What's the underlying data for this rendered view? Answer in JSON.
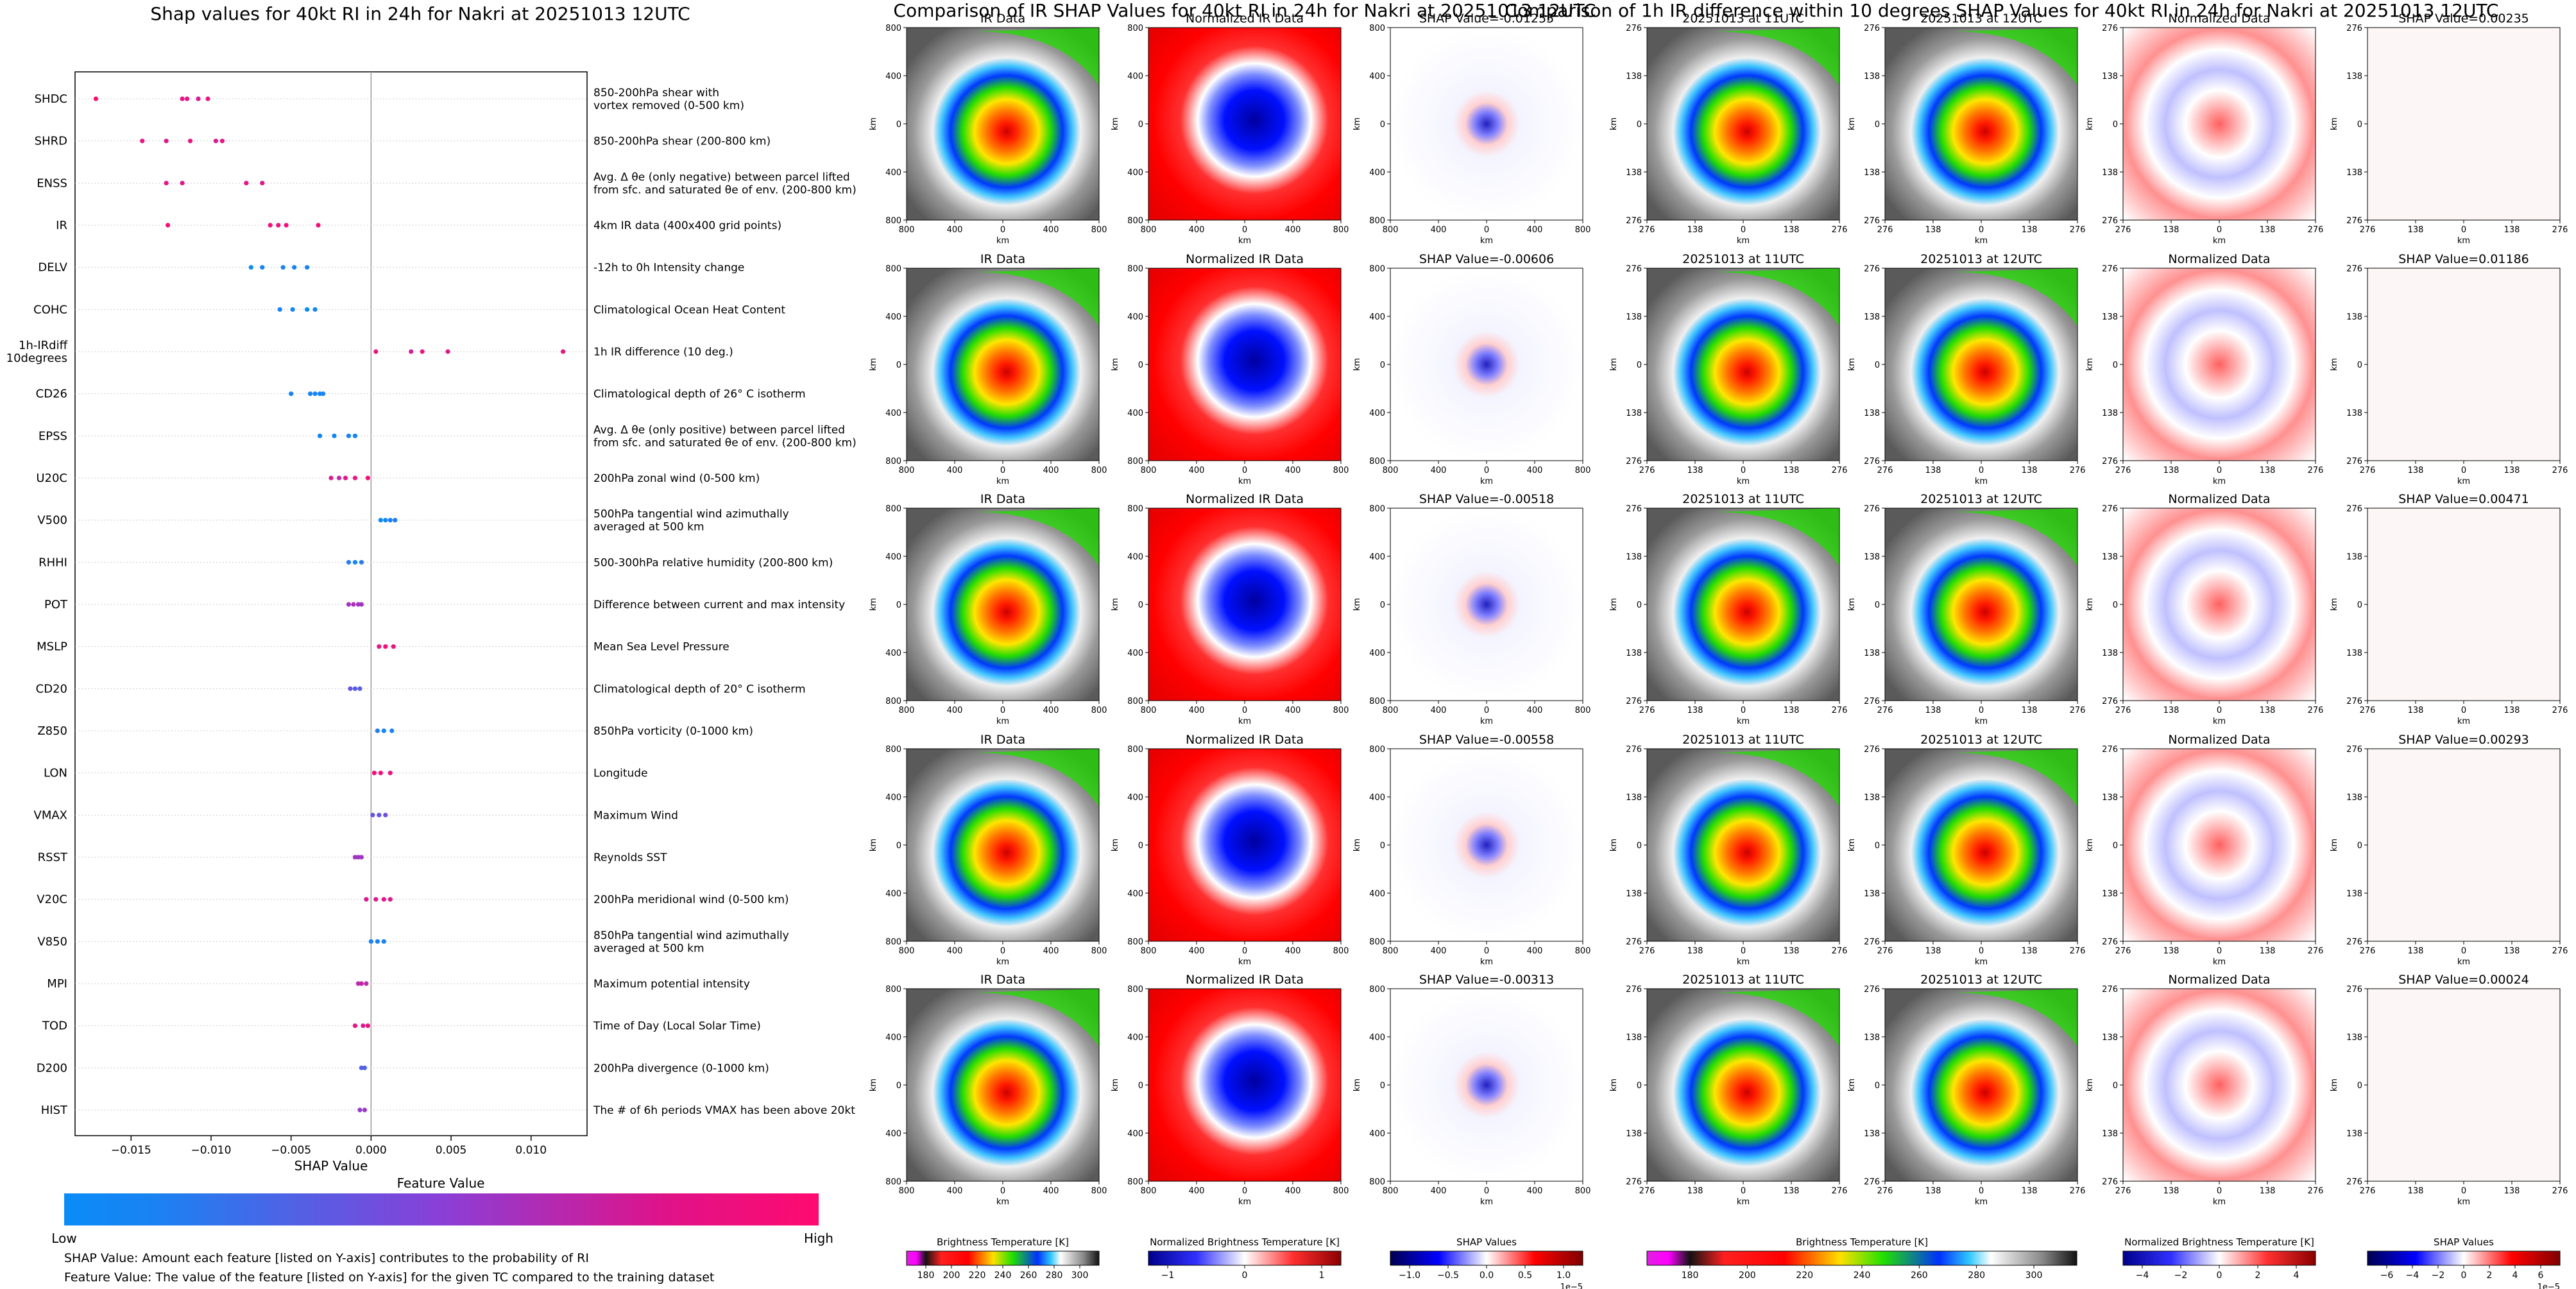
{
  "left_title": "Shap values for 40kt RI in 24h for Nakri at 20251013 12UTC",
  "mid_title": "Comparison of IR SHAP Values for 40kt RI in 24h for Nakri at 20251013 12UTC",
  "right_title": "Comparison of 1h IR difference within 10 degrees SHAP Values for 40kt RI in 24h for Nakri at 20251013 12UTC",
  "feature_colorbar": {
    "label": "Feature Value",
    "low": "Low",
    "high": "High",
    "colors": [
      "#0a8cf7",
      "#8a3fd7",
      "#ff0a6f"
    ]
  },
  "notes": [
    "SHAP Value: Amount each feature [listed on Y-axis] contributes to the probability of RI",
    "Feature Value: The value of the feature [listed on Y-axis] for the given TC compared to the training dataset"
  ],
  "chart_data": [
    {
      "type": "scatter",
      "title": "Shap values for 40kt RI in 24h for Nakri at 20251013 12UTC",
      "xlabel": "SHAP Value",
      "xlim": [
        -0.0185,
        0.0135
      ],
      "xticks": [
        -0.015,
        -0.01,
        -0.005,
        0.0,
        0.005,
        0.01
      ],
      "xticklabels": [
        "−0.015",
        "−0.010",
        "−0.005",
        "0.000",
        "0.005",
        "0.010"
      ],
      "grid": "horizontal dotted",
      "features": [
        {
          "name": "SHDC",
          "desc": "850-200hPa shear with\nvortex removed (0-500 km)",
          "points": [
            [
              -0.0172,
              1
            ],
            [
              -0.0118,
              0.9
            ],
            [
              -0.0115,
              0.9
            ],
            [
              -0.0108,
              0.85
            ],
            [
              -0.0102,
              0.9
            ]
          ]
        },
        {
          "name": "SHRD",
          "desc": "850-200hPa shear (200-800 km)",
          "points": [
            [
              -0.0143,
              0.9
            ],
            [
              -0.0128,
              0.85
            ],
            [
              -0.0113,
              0.9
            ],
            [
              -0.0097,
              0.85
            ],
            [
              -0.0093,
              0.9
            ]
          ]
        },
        {
          "name": "ENSS",
          "desc": "Avg. Δ θe (only negative) between parcel lifted\nfrom sfc. and saturated θe of env. (200-800 km)",
          "points": [
            [
              -0.0128,
              0.9
            ],
            [
              -0.0118,
              0.85
            ],
            [
              -0.0078,
              0.9
            ],
            [
              -0.0068,
              0.85
            ]
          ]
        },
        {
          "name": "IR",
          "desc": "4km IR data (400x400 grid points)",
          "points": [
            [
              -0.0127,
              0.95
            ],
            [
              -0.0063,
              0.95
            ],
            [
              -0.0058,
              0.9
            ],
            [
              -0.0053,
              0.95
            ],
            [
              -0.0033,
              0.95
            ]
          ]
        },
        {
          "name": "DELV",
          "desc": "-12h to 0h Intensity change",
          "points": [
            [
              -0.0075,
              0.0
            ],
            [
              -0.0068,
              0.05
            ],
            [
              -0.0055,
              0.05
            ],
            [
              -0.0048,
              0.05
            ],
            [
              -0.004,
              0.05
            ]
          ]
        },
        {
          "name": "COHC",
          "desc": "Climatological Ocean Heat Content",
          "points": [
            [
              -0.0057,
              0.05
            ],
            [
              -0.0049,
              0.05
            ],
            [
              -0.004,
              0.0
            ],
            [
              -0.0035,
              0.05
            ]
          ]
        },
        {
          "name": "1h-IRdiff\n10degrees",
          "desc": "1h IR difference (10 deg.)",
          "points": [
            [
              0.0003,
              0.9
            ],
            [
              0.0025,
              0.8
            ],
            [
              0.0032,
              0.9
            ],
            [
              0.0048,
              0.85
            ],
            [
              0.012,
              0.9
            ]
          ]
        },
        {
          "name": "CD26",
          "desc": "Climatological depth of 26° C isotherm",
          "points": [
            [
              -0.005,
              0.05
            ],
            [
              -0.0038,
              0.05
            ],
            [
              -0.0035,
              0.05
            ],
            [
              -0.0032,
              0.05
            ],
            [
              -0.003,
              0.05
            ]
          ]
        },
        {
          "name": "EPSS",
          "desc": "Avg. Δ θe (only positive) between parcel lifted\nfrom sfc. and saturated θe of env. (200-800 km)",
          "points": [
            [
              -0.0032,
              0.05
            ],
            [
              -0.0023,
              0.05
            ],
            [
              -0.0014,
              0.05
            ],
            [
              -0.001,
              0.05
            ]
          ]
        },
        {
          "name": "U20C",
          "desc": "200hPa zonal wind (0-500 km)",
          "points": [
            [
              -0.0025,
              0.85
            ],
            [
              -0.002,
              0.75
            ],
            [
              -0.0016,
              0.9
            ],
            [
              -0.001,
              0.9
            ],
            [
              -0.0002,
              0.95
            ]
          ]
        },
        {
          "name": "V500",
          "desc": "500hPa tangential wind azimuthally\naveraged at 500 km",
          "points": [
            [
              0.0006,
              0.0
            ],
            [
              0.0009,
              0.05
            ],
            [
              0.0012,
              0.05
            ],
            [
              0.0015,
              0.1
            ]
          ]
        },
        {
          "name": "RHHI",
          "desc": "500-300hPa relative humidity (200-800 km)",
          "points": [
            [
              -0.0014,
              0.1
            ],
            [
              -0.001,
              0.05
            ],
            [
              -0.0006,
              0.1
            ]
          ]
        },
        {
          "name": "POT",
          "desc": "Difference between current and max intensity",
          "points": [
            [
              -0.0014,
              0.6
            ],
            [
              -0.0011,
              0.65
            ],
            [
              -0.0008,
              0.6
            ],
            [
              -0.0006,
              0.6
            ]
          ]
        },
        {
          "name": "MSLP",
          "desc": "Mean Sea Level Pressure",
          "points": [
            [
              0.0005,
              0.9
            ],
            [
              0.0009,
              0.95
            ],
            [
              0.0014,
              0.9
            ]
          ]
        },
        {
          "name": "CD20",
          "desc": "Climatological depth of 20° C isotherm",
          "points": [
            [
              -0.0013,
              0.35
            ],
            [
              -0.001,
              0.3
            ],
            [
              -0.0007,
              0.3
            ]
          ]
        },
        {
          "name": "Z850",
          "desc": "850hPa vorticity (0-1000 km)",
          "points": [
            [
              0.0004,
              0.1
            ],
            [
              0.0008,
              0.05
            ],
            [
              0.0013,
              0.05
            ]
          ]
        },
        {
          "name": "LON",
          "desc": "Longitude",
          "points": [
            [
              0.0002,
              0.95
            ],
            [
              0.0006,
              0.95
            ],
            [
              0.0012,
              0.9
            ]
          ]
        },
        {
          "name": "VMAX",
          "desc": "Maximum Wind",
          "points": [
            [
              0.0001,
              0.35
            ],
            [
              0.0005,
              0.35
            ],
            [
              0.0009,
              0.4
            ]
          ]
        },
        {
          "name": "RSST",
          "desc": "Reynolds SST",
          "points": [
            [
              -0.001,
              0.6
            ],
            [
              -0.0008,
              0.6
            ],
            [
              -0.0006,
              0.6
            ]
          ]
        },
        {
          "name": "V20C",
          "desc": "200hPa meridional wind (0-500 km)",
          "points": [
            [
              -0.0003,
              0.85
            ],
            [
              0.0003,
              0.85
            ],
            [
              0.0008,
              0.9
            ],
            [
              0.0012,
              0.85
            ]
          ]
        },
        {
          "name": "V850",
          "desc": "850hPa tangential wind azimuthally\naveraged at 500 km",
          "points": [
            [
              0.0,
              0.05
            ],
            [
              0.0004,
              0.05
            ],
            [
              0.0008,
              0.05
            ]
          ]
        },
        {
          "name": "MPI",
          "desc": "Maximum potential intensity",
          "points": [
            [
              -0.0008,
              0.7
            ],
            [
              -0.0006,
              0.75
            ],
            [
              -0.0003,
              0.7
            ]
          ]
        },
        {
          "name": "TOD",
          "desc": "Time of Day (Local Solar Time)",
          "points": [
            [
              -0.001,
              0.9
            ],
            [
              -0.0005,
              0.85
            ],
            [
              -0.0002,
              0.9
            ]
          ]
        },
        {
          "name": "D200",
          "desc": "200hPa divergence (0-1000 km)",
          "points": [
            [
              -0.0006,
              0.3
            ],
            [
              -0.0004,
              0.25
            ]
          ]
        },
        {
          "name": "HIST",
          "desc": "The # of 6h periods VMAX has been above 20kt",
          "points": [
            [
              -0.0007,
              0.55
            ],
            [
              -0.0004,
              0.55
            ]
          ]
        }
      ]
    },
    {
      "type": "heatmap",
      "title": "Comparison of IR SHAP Values for 40kt RI in 24h for Nakri at 20251013 12UTC",
      "column_titles": [
        "IR Data",
        "Normalized IR Data"
      ],
      "shap_prefix": "SHAP Value=",
      "row_shap_values": [
        "-0.01255",
        "-0.00606",
        "-0.00518",
        "-0.00558",
        "-0.00313"
      ],
      "xlabel": "km",
      "ylabel": "km",
      "ticklabels": [
        "800",
        "400",
        "0",
        "400",
        "800"
      ],
      "colorbars": [
        {
          "label": "Brightness Temperature [K]",
          "ticks": [
            "180",
            "200",
            "220",
            "240",
            "260",
            "280",
            "300"
          ]
        },
        {
          "label": "Normalized Brightness Temperature [K]",
          "ticks": [
            "−1",
            "0",
            "1"
          ]
        },
        {
          "label": "SHAP Values",
          "ticks": [
            "−1.0",
            "−0.5",
            "0.0",
            "0.5",
            "1.0"
          ],
          "exponent": "1e−5"
        }
      ]
    },
    {
      "type": "heatmap",
      "title": "Comparison of 1h IR difference within 10 degrees SHAP Values for 40kt RI in 24h for Nakri at 20251013 12UTC",
      "column_titles": [
        "20251013 at 11UTC",
        "20251013 at 12UTC",
        "Normalized Data"
      ],
      "shap_prefix": "SHAP Value=",
      "row_shap_values": [
        "0.00235",
        "0.01186",
        "0.00471",
        "0.00293",
        "0.00024"
      ],
      "xlabel": "km",
      "ylabel": "km",
      "ticklabels": [
        "276",
        "138",
        "0",
        "138",
        "276"
      ],
      "colorbars": [
        {
          "label": "Brightness Temperature [K]",
          "ticks": [
            "180",
            "200",
            "220",
            "240",
            "260",
            "280",
            "300"
          ]
        },
        {
          "label": "Normalized Brightness Temperature [K]",
          "ticks": [
            "−4",
            "−2",
            "0",
            "2",
            "4"
          ]
        },
        {
          "label": "SHAP Values",
          "ticks": [
            "−6",
            "−4",
            "−2",
            "0",
            "2",
            "4",
            "6"
          ],
          "exponent": "1e−5"
        }
      ]
    }
  ]
}
